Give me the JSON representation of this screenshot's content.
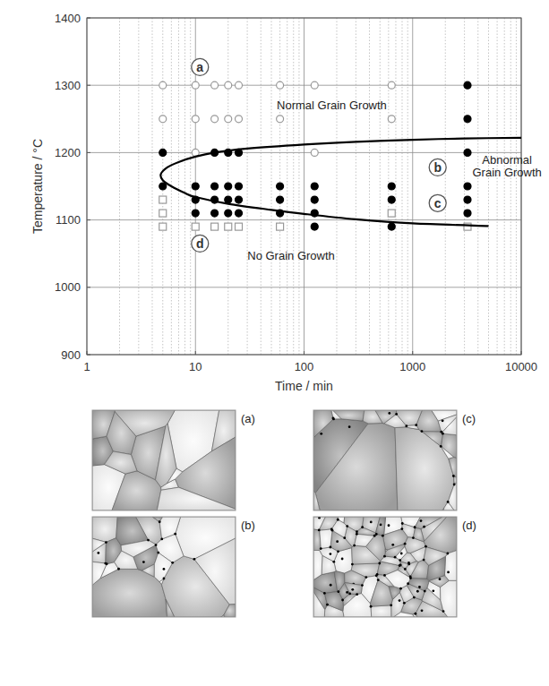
{
  "chart_data": {
    "type": "scatter",
    "x_label": "Time / min",
    "y_label": "Temperature / °C",
    "log": "x",
    "grid": true,
    "xlim": [
      1,
      10000
    ],
    "xticks": [
      1,
      10,
      100,
      1000,
      10000
    ],
    "ylim": [
      900,
      1400
    ],
    "yticks": [
      900,
      1000,
      1100,
      1200,
      1300,
      1400
    ],
    "series": [
      {
        "marker": "circle-open",
        "color": "#999999",
        "x": [
          5,
          10,
          15,
          20,
          25,
          60,
          125,
          640,
          5,
          10,
          15,
          20,
          25,
          60,
          640,
          10,
          125
        ],
        "values": [
          1300,
          1300,
          1300,
          1300,
          1300,
          1300,
          1300,
          1300,
          1250,
          1250,
          1250,
          1250,
          1250,
          1250,
          1250,
          1200,
          1200
        ]
      },
      {
        "marker": "circle-filled",
        "color": "#000000",
        "x": [
          5,
          5,
          10,
          10,
          10,
          15,
          15,
          15,
          15,
          20,
          20,
          20,
          20,
          25,
          25,
          25,
          25,
          60,
          60,
          60,
          125,
          125,
          125,
          125,
          640,
          640,
          640,
          3200,
          3200,
          3200,
          3200,
          3200,
          3200
        ],
        "values": [
          1200,
          1150,
          1150,
          1130,
          1110,
          1200,
          1150,
          1130,
          1110,
          1200,
          1150,
          1130,
          1110,
          1200,
          1150,
          1130,
          1110,
          1150,
          1130,
          1110,
          1150,
          1130,
          1110,
          1090,
          1150,
          1130,
          1090,
          1300,
          1250,
          1200,
          1150,
          1130,
          1110
        ]
      },
      {
        "marker": "square-open",
        "color": "#999999",
        "x": [
          5,
          5,
          5,
          10,
          15,
          20,
          25,
          60,
          640,
          3200
        ],
        "values": [
          1130,
          1110,
          1090,
          1090,
          1090,
          1090,
          1090,
          1090,
          1110,
          1090
        ]
      },
      {
        "type": "line",
        "color": "#000000",
        "x": [
          10000,
          3000,
          1000,
          300,
          100,
          30,
          15,
          10,
          7,
          5.5,
          4.8,
          5,
          6,
          8,
          10,
          20,
          50,
          100,
          300,
          1000,
          5000
        ],
        "values": [
          1222,
          1221,
          1219,
          1216,
          1212,
          1206,
          1200,
          1194,
          1186,
          1178,
          1168,
          1159,
          1150,
          1140,
          1134,
          1124,
          1115,
          1109,
          1101,
          1095,
          1091
        ]
      }
    ],
    "annotations": [
      {
        "text": "Normal Grain Growth",
        "x": 180,
        "y": 1270
      },
      {
        "text": "Abnormal Grain Growth",
        "x": 7400,
        "y": 1180
      },
      {
        "text": "No Grain Growth",
        "x": 76,
        "y": 1047
      }
    ],
    "labels": [
      {
        "text": "a",
        "x": 11,
        "y": 1327
      },
      {
        "text": "b",
        "x": 1700,
        "y": 1178
      },
      {
        "text": "c",
        "x": 1700,
        "y": 1125
      },
      {
        "text": "d",
        "x": 11,
        "y": 1065
      }
    ]
  },
  "micrographs": [
    {
      "label": "(a)"
    },
    {
      "label": "(b)"
    },
    {
      "label": "(c)"
    },
    {
      "label": "(d)"
    }
  ]
}
